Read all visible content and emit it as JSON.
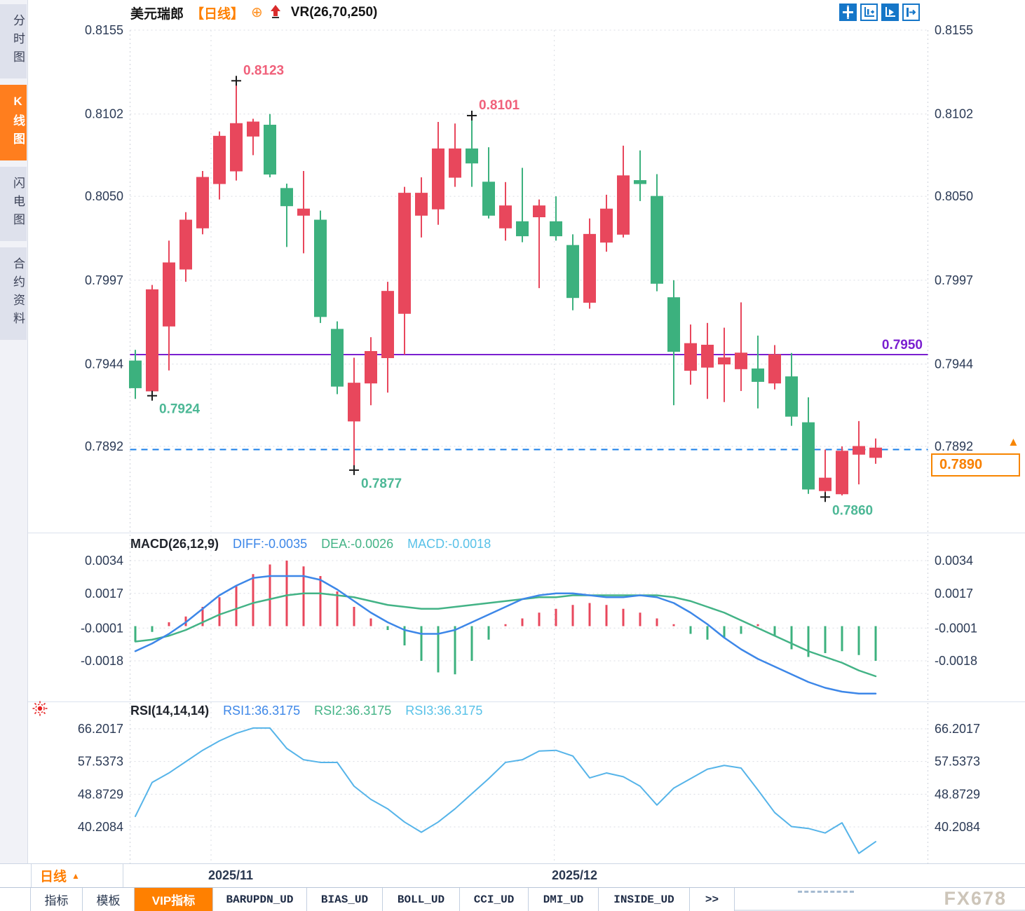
{
  "sidebar": {
    "items": [
      {
        "label": "分时图",
        "active": false
      },
      {
        "label": "K线图",
        "active": true
      },
      {
        "label": "闪电图",
        "active": false
      },
      {
        "label": "合约资料",
        "active": false
      }
    ]
  },
  "header": {
    "instrument": "美元瑞郎",
    "period_tag": "【日线】",
    "add_icon": "⊕",
    "signal_icon": "red-up-arrow",
    "indicator_label": "VR(26,70,250)",
    "toolbar_icons": [
      "pan-crosshair-icon",
      "axis-range-icon",
      "axis-pointer-icon",
      "pane-export-icon"
    ]
  },
  "main_pane": {
    "y_ticks": [
      "0.8155",
      "0.8102",
      "0.8050",
      "0.7997",
      "0.7944",
      "0.7892"
    ],
    "support_line_label": "0.7950",
    "current_price": {
      "label": "0.7890",
      "marker": "▲"
    },
    "annotations": {
      "high1": "0.8123",
      "high2": "0.8101",
      "low1": "0.7924",
      "low2": "0.7877",
      "low3": "0.7860"
    }
  },
  "macd_pane": {
    "title": "MACD(26,12,9)",
    "diff": "DIFF:-0.0035",
    "dea": "DEA:-0.0026",
    "macd": "MACD:-0.0018",
    "y_ticks": [
      "0.0034",
      "0.0017",
      "-0.0001",
      "-0.0018"
    ]
  },
  "rsi_pane": {
    "title": "RSI(14,14,14)",
    "rsi1": "RSI1:36.3175",
    "rsi2": "RSI2:36.3175",
    "rsi3": "RSI3:36.3175",
    "y_ticks": [
      "66.2017",
      "57.5373",
      "48.8729",
      "40.2084"
    ]
  },
  "x_axis": {
    "period_selector": "日线",
    "period_arrow": "▲",
    "dates": [
      "2025/11",
      "2025/12"
    ]
  },
  "bottom_tabs": {
    "items": [
      {
        "label": "指标"
      },
      {
        "label": "模板"
      },
      {
        "label": "VIP指标",
        "active": true
      },
      {
        "label": "BARUPDN_UD"
      },
      {
        "label": "BIAS_UD"
      },
      {
        "label": "BOLL_UD"
      },
      {
        "label": "CCI_UD"
      },
      {
        "label": "DMI_UD"
      },
      {
        "label": "INSIDE_UD"
      },
      {
        "label": ">>"
      }
    ]
  },
  "watermark": "FX678",
  "colors": {
    "up": "#e8475c",
    "down": "#3cb17e",
    "up_label": "#f0607a",
    "down_label": "#4db896",
    "accent_orange": "#ff8000",
    "support_purple": "#7a1fd0",
    "price_line_blue": "#1a7fe8",
    "diff_blue": "#3d87e8",
    "dea_green": "#43b386",
    "macd_cyan": "#57c1e8",
    "rsi_line": "#56b4e9",
    "grid": "#d9dce3",
    "tick_text": "#2b3a55"
  },
  "chart_data": [
    {
      "type": "candlestick",
      "title": "美元瑞郎 【日线】 VR(26,70,250)",
      "convention": "red = up, green = down (Chinese convention)",
      "ylim": [
        0.785,
        0.816
      ],
      "y_ticks": [
        0.8155,
        0.8102,
        0.805,
        0.7997,
        0.7944,
        0.7892
      ],
      "x_gridlines": [
        {
          "pos": 5.5,
          "label": "2025/11"
        },
        {
          "pos": 25.9,
          "label": "2025/12"
        }
      ],
      "ohlc": [
        [
          0.7946,
          0.7953,
          0.7922,
          0.7929
        ],
        [
          0.7927,
          0.7994,
          0.7924,
          0.7991
        ],
        [
          0.7968,
          0.8022,
          0.794,
          0.8008
        ],
        [
          0.8004,
          0.804,
          0.7996,
          0.8035
        ],
        [
          0.803,
          0.8066,
          0.8026,
          0.8062
        ],
        [
          0.8058,
          0.8091,
          0.8048,
          0.8088
        ],
        [
          0.8066,
          0.8123,
          0.806,
          0.8096
        ],
        [
          0.8088,
          0.8099,
          0.8076,
          0.8097
        ],
        [
          0.8095,
          0.8102,
          0.8062,
          0.8064
        ],
        [
          0.8055,
          0.8058,
          0.8018,
          0.8044
        ],
        [
          0.8038,
          0.8066,
          0.8014,
          0.8042
        ],
        [
          0.8035,
          0.8041,
          0.797,
          0.7974
        ],
        [
          0.7966,
          0.7971,
          0.7925,
          0.793
        ],
        [
          0.7908,
          0.7948,
          0.7877,
          0.7932
        ],
        [
          0.7932,
          0.7961,
          0.7918,
          0.7952
        ],
        [
          0.7948,
          0.7996,
          0.7926,
          0.799
        ],
        [
          0.7976,
          0.8056,
          0.795,
          0.8052
        ],
        [
          0.8038,
          0.8062,
          0.8024,
          0.8052
        ],
        [
          0.8042,
          0.8097,
          0.8032,
          0.808
        ],
        [
          0.8062,
          0.8096,
          0.8056,
          0.808
        ],
        [
          0.808,
          0.8101,
          0.8056,
          0.8071
        ],
        [
          0.8059,
          0.8081,
          0.8036,
          0.8038
        ],
        [
          0.803,
          0.8059,
          0.8022,
          0.8044
        ],
        [
          0.8034,
          0.8068,
          0.8021,
          0.8025
        ],
        [
          0.8037,
          0.8048,
          0.7992,
          0.8044
        ],
        [
          0.8034,
          0.805,
          0.8022,
          0.8025
        ],
        [
          0.8019,
          0.8026,
          0.7978,
          0.7986
        ],
        [
          0.7983,
          0.8036,
          0.7979,
          0.8026
        ],
        [
          0.8021,
          0.8051,
          0.8015,
          0.8042
        ],
        [
          0.8026,
          0.8082,
          0.8024,
          0.8063
        ],
        [
          0.806,
          0.8079,
          0.8047,
          0.8058
        ],
        [
          0.805,
          0.8064,
          0.799,
          0.7995
        ],
        [
          0.7986,
          0.7997,
          0.7918,
          0.7952
        ],
        [
          0.794,
          0.7969,
          0.7931,
          0.7957
        ],
        [
          0.7942,
          0.797,
          0.7922,
          0.7956
        ],
        [
          0.7944,
          0.7967,
          0.792,
          0.7948
        ],
        [
          0.7941,
          0.7983,
          0.7927,
          0.7951
        ],
        [
          0.7941,
          0.7962,
          0.7916,
          0.7933
        ],
        [
          0.7932,
          0.7956,
          0.7928,
          0.795
        ],
        [
          0.7936,
          0.7951,
          0.7905,
          0.7911
        ],
        [
          0.7907,
          0.7923,
          0.7862,
          0.7865
        ],
        [
          0.7864,
          0.789,
          0.786,
          0.7872
        ],
        [
          0.7862,
          0.7892,
          0.7861,
          0.7889
        ],
        [
          0.7887,
          0.7908,
          0.7868,
          0.7892
        ],
        [
          0.7885,
          0.7897,
          0.7881,
          0.7891
        ]
      ],
      "annotations": [
        {
          "index": 7,
          "price": 0.8123,
          "label": "0.8123",
          "kind": "high"
        },
        {
          "index": 21,
          "price": 0.8101,
          "label": "0.8101",
          "kind": "high"
        },
        {
          "index": 2,
          "price": 0.7924,
          "label": "0.7924",
          "kind": "low"
        },
        {
          "index": 14,
          "price": 0.7877,
          "label": "0.7877",
          "kind": "low"
        },
        {
          "index": 42,
          "price": 0.786,
          "label": "0.7860",
          "kind": "low"
        }
      ],
      "hlines": [
        {
          "price": 0.795,
          "label": "0.7950",
          "style": "solid",
          "color": "purple"
        },
        {
          "price": 0.789,
          "label": "0.7890",
          "style": "dashed",
          "color": "blue",
          "note": "current price line"
        }
      ]
    },
    {
      "type": "bar",
      "name": "MACD(26,12,9)",
      "y_ticks": [
        0.0034,
        0.0017,
        -0.0001,
        -0.0018
      ],
      "current": {
        "DIFF": -0.0035,
        "DEA": -0.0026,
        "MACD": -0.0018
      },
      "histogram": [
        -0.0008,
        -0.0003,
        0.0002,
        0.0005,
        0.001,
        0.0015,
        0.0021,
        0.0027,
        0.0032,
        0.0034,
        0.0031,
        0.0026,
        0.0018,
        0.001,
        0.0004,
        -0.0002,
        -0.001,
        -0.0018,
        -0.0024,
        -0.0025,
        -0.0018,
        -0.0007,
        0.0001,
        0.0004,
        0.0007,
        0.0009,
        0.0011,
        0.0012,
        0.0011,
        0.0009,
        0.0007,
        0.0004,
        0.0001,
        -0.0004,
        -0.0007,
        -0.0006,
        -0.0004,
        0.0001,
        -0.0005,
        -0.0012,
        -0.0016,
        -0.0014,
        -0.0013,
        -0.0015,
        -0.0018
      ],
      "series": [
        {
          "name": "DIFF",
          "values": [
            -0.0013,
            -0.0009,
            -0.0004,
            0.0002,
            0.0009,
            0.0016,
            0.0021,
            0.0025,
            0.0026,
            0.0026,
            0.0026,
            0.0024,
            0.0019,
            0.0013,
            0.0007,
            0.0002,
            -0.0002,
            -0.0004,
            -0.0004,
            -0.0002,
            0.0002,
            0.0006,
            0.001,
            0.0014,
            0.0016,
            0.0017,
            0.0017,
            0.0016,
            0.0015,
            0.0015,
            0.0016,
            0.0015,
            0.0012,
            0.0007,
            0.0001,
            -0.0006,
            -0.0012,
            -0.0017,
            -0.0021,
            -0.0025,
            -0.0029,
            -0.0032,
            -0.0034,
            -0.0035,
            -0.0035
          ]
        },
        {
          "name": "DEA",
          "values": [
            -0.0008,
            -0.0007,
            -0.0005,
            -0.0002,
            0.0002,
            0.0006,
            0.0009,
            0.0012,
            0.0014,
            0.0016,
            0.0017,
            0.0017,
            0.0016,
            0.0015,
            0.0013,
            0.0011,
            0.001,
            0.0009,
            0.0009,
            0.001,
            0.0011,
            0.0012,
            0.0013,
            0.0014,
            0.0015,
            0.0015,
            0.0016,
            0.0016,
            0.0016,
            0.0016,
            0.0016,
            0.0016,
            0.0015,
            0.0013,
            0.001,
            0.0007,
            0.0003,
            -0.0001,
            -0.0005,
            -0.0009,
            -0.0013,
            -0.0016,
            -0.0019,
            -0.0023,
            -0.0026
          ]
        }
      ]
    },
    {
      "type": "line",
      "name": "RSI(14,14,14)",
      "y_ticks": [
        66.2017,
        57.5373,
        48.8729,
        40.2084
      ],
      "current": 36.3175,
      "note": "RSI1/RSI2/RSI3 coincide",
      "series": [
        {
          "name": "RSI1",
          "values": [
            43.0,
            52.0,
            54.5,
            57.5,
            60.5,
            63.0,
            65.0,
            66.4,
            66.4,
            61.0,
            58.0,
            57.3,
            57.3,
            51.0,
            47.5,
            45.0,
            41.5,
            38.8,
            41.5,
            45.0,
            49.0,
            53.0,
            57.3,
            58.0,
            60.3,
            60.5,
            59.0,
            53.2,
            54.5,
            53.5,
            51.0,
            46.0,
            50.5,
            53.0,
            55.5,
            56.5,
            55.8,
            50.0,
            44.0,
            40.3,
            39.8,
            38.6,
            41.3,
            33.2,
            36.3
          ]
        }
      ]
    }
  ]
}
